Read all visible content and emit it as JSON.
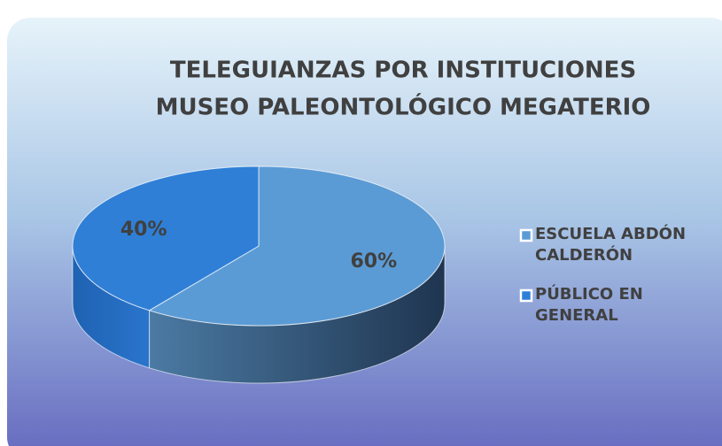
{
  "chart_data": {
    "type": "pie3d",
    "title": [
      "TELEGUIANZAS POR INSTITUCIONES",
      "MUSEO PALEONTOLÓGICO MEGATERIO"
    ],
    "categories": [
      "ESCUELA ABDÓN CALDERÓN",
      "PÚBLICO EN GENERAL"
    ],
    "values": [
      60,
      40
    ],
    "value_labels": [
      "60%",
      "40%"
    ],
    "colors": [
      "#5b9bd5",
      "#2f7fd6"
    ],
    "legend": "right"
  }
}
